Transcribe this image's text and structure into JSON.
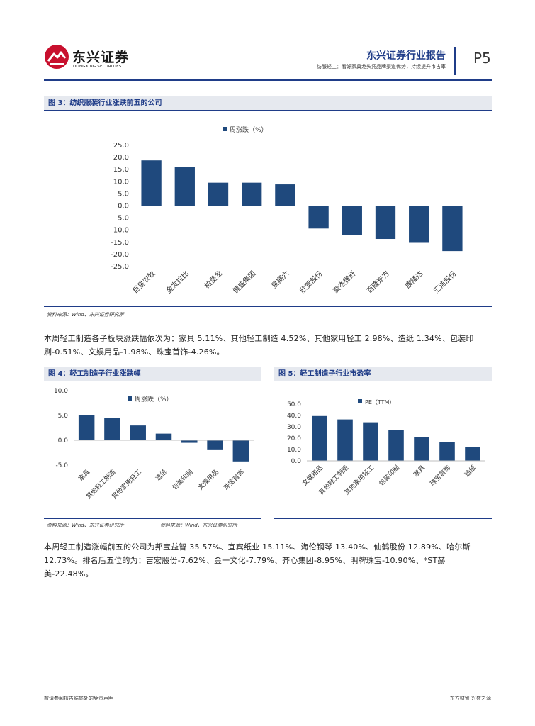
{
  "header": {
    "logo_cn": "东兴证券",
    "logo_en": "DONGXING SECURITIES",
    "report_name": "东兴证券行业报告",
    "report_subtitle": "纺服轻工：看好家具龙头凭品牌渠道优势，持续提升市占率",
    "page_number": "P5"
  },
  "figure3": {
    "title": "图 3：纺织服装行业涨跌前五的公司",
    "source": "资料来源：Wind、东兴证券研究所"
  },
  "para1": "本周轻工制造各子板块涨跌幅依次为：家具 5.11%、其他轻工制造 4.52%、其他家用轻工 2.98%、造纸 1.34%、包装印刷-0.51%、文娱用品-1.98%、珠宝首饰-4.26%。",
  "figure4": {
    "title": "图 4：轻工制造子行业涨跌幅",
    "source": "资料来源：Wind、东兴证券研究所"
  },
  "figure5": {
    "title": "图 5：轻工制造子行业市盈率",
    "source": "资料来源：Wind、东兴证券研究所"
  },
  "para2": "本周轻工制造涨幅前五的公司为邦宝益智 35.57%、宜宾纸业 15.11%、海伦钢琴 13.40%、仙鹤股份 12.89%、哈尔斯 12.73%。排名后五位的为：吉宏股份-7.62%、金一文化-7.79%、齐心集团-8.95%、明牌珠宝-10.90%、*ST赫美-22.48%。",
  "footer": {
    "left": "敬请参阅报告结尾处的免责声明",
    "right": "东方财智 兴盛之源"
  },
  "colors": {
    "bar": "#1f497d",
    "accent": "#1f3c88",
    "logo_red": "#c8102e"
  },
  "chart_data": [
    {
      "type": "bar",
      "legend": "周涨跌（%）",
      "legend_position": "top-center",
      "categories": [
        "巨星农牧",
        "金发拉比",
        "柏堡龙",
        "健盛集团",
        "星期六",
        "欣贺股份",
        "聚杰微纤",
        "百隆东方",
        "康隆达",
        "汇洁股份"
      ],
      "values": [
        18.8,
        16.2,
        9.6,
        9.6,
        8.9,
        -9.3,
        -11.9,
        -13.6,
        -15.2,
        -18.6
      ],
      "yticks": [
        "25.0",
        "20.0",
        "15.0",
        "10.0",
        "5.0",
        "0.0",
        "-5.0",
        "-10.0",
        "-15.0",
        "-20.0",
        "-25.0"
      ],
      "ylim": [
        -25,
        25
      ]
    },
    {
      "type": "bar",
      "legend": "周涨跌（%）",
      "legend_position": "top-center",
      "categories": [
        "家具",
        "其他轻工制造",
        "其他家用轻工",
        "造纸",
        "包装印刷",
        "文娱用品",
        "珠宝首饰"
      ],
      "values": [
        5.11,
        4.52,
        2.98,
        1.34,
        -0.51,
        -1.98,
        -4.26
      ],
      "yticks": [
        "10.0",
        "5.0",
        "0.0",
        "-5.0"
      ],
      "ylim": [
        -5,
        10
      ]
    },
    {
      "type": "bar",
      "legend": "PE（TTM）",
      "legend_position": "top-center",
      "categories": [
        "文娱用品",
        "其他轻工制造",
        "其他家用轻工",
        "包装印刷",
        "家具",
        "珠宝首饰",
        "造纸"
      ],
      "values": [
        39.5,
        36.5,
        34.0,
        27.0,
        21.0,
        16.5,
        12.5
      ],
      "yticks": [
        "50.0",
        "40.0",
        "30.0",
        "20.0",
        "10.0",
        "0.0"
      ],
      "ylim": [
        0,
        50
      ]
    }
  ]
}
